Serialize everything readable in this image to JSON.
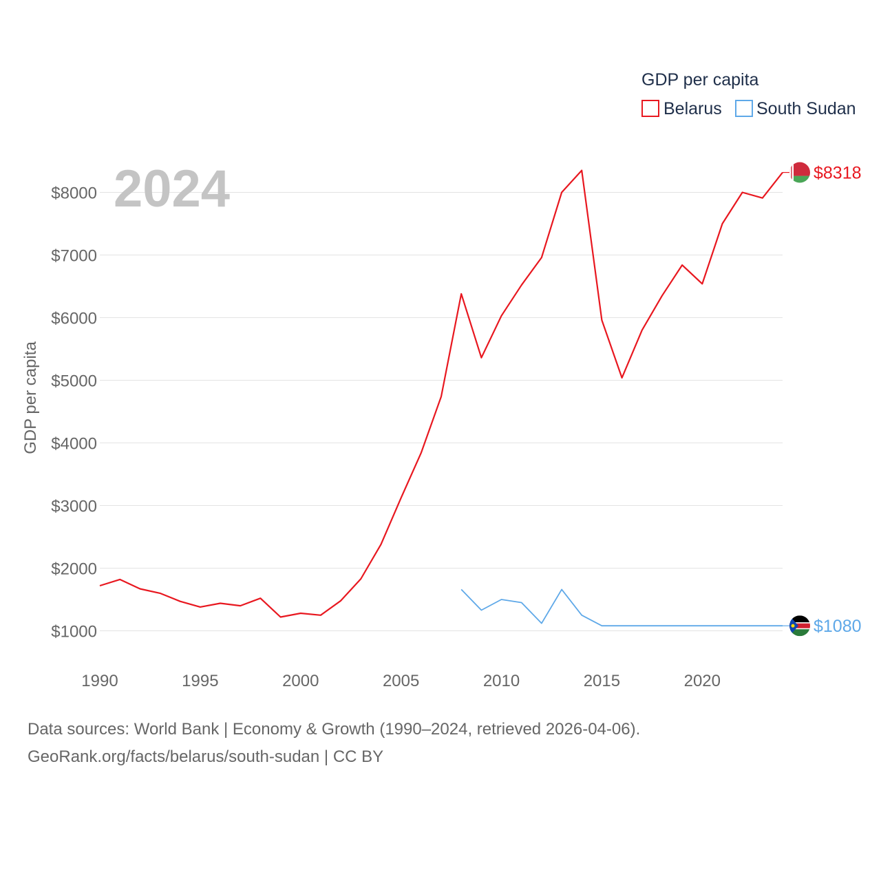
{
  "chart_data": {
    "type": "line",
    "title": "GDP per capita",
    "year_label": "2024",
    "ylabel": "GDP per capita",
    "xlim": [
      1990,
      2024
    ],
    "ylim": [
      500,
      8700
    ],
    "x_ticks": [
      1990,
      1995,
      2000,
      2005,
      2010,
      2015,
      2020
    ],
    "y_ticks": [
      {
        "value": 1000,
        "label": "$1000"
      },
      {
        "value": 2000,
        "label": "$2000"
      },
      {
        "value": 3000,
        "label": "$3000"
      },
      {
        "value": 4000,
        "label": "$4000"
      },
      {
        "value": 5000,
        "label": "$5000"
      },
      {
        "value": 6000,
        "label": "$6000"
      },
      {
        "value": 7000,
        "label": "$7000"
      },
      {
        "value": 8000,
        "label": "$8000"
      }
    ],
    "grid": true,
    "legend_position": "top-right",
    "series": [
      {
        "name": "Belarus",
        "color": "#e8171f",
        "end_label": "$8318",
        "x": [
          1990,
          1991,
          1992,
          1993,
          1994,
          1995,
          1996,
          1997,
          1998,
          1999,
          2000,
          2001,
          2002,
          2003,
          2004,
          2005,
          2006,
          2007,
          2008,
          2009,
          2010,
          2011,
          2012,
          2013,
          2014,
          2015,
          2016,
          2017,
          2018,
          2019,
          2020,
          2021,
          2022,
          2023,
          2024
        ],
        "values": [
          1720,
          1820,
          1670,
          1600,
          1470,
          1380,
          1440,
          1400,
          1520,
          1220,
          1280,
          1250,
          1480,
          1830,
          2380,
          3120,
          3840,
          4740,
          6380,
          5360,
          6030,
          6520,
          6960,
          8000,
          8350,
          5960,
          5040,
          5800,
          6350,
          6840,
          6540,
          7500,
          8000,
          7910,
          8318
        ]
      },
      {
        "name": "South Sudan",
        "color": "#5ea8e8",
        "end_label": "$1080",
        "x": [
          2008,
          2009,
          2010,
          2011,
          2012,
          2013,
          2014,
          2015,
          2016,
          2017,
          2018,
          2019,
          2020,
          2021,
          2022,
          2023,
          2024
        ],
        "values": [
          1660,
          1330,
          1500,
          1450,
          1120,
          1660,
          1250,
          1080,
          1080,
          1080,
          1080,
          1080,
          1080,
          1080,
          1080,
          1080,
          1080
        ]
      }
    ]
  },
  "flags": {
    "belarus": {
      "top": "#cf2b3d",
      "bottom": "#4aa657",
      "ornament": "#ffffff"
    },
    "south_sudan": {
      "top": "#000000",
      "middle": "#d12030",
      "bottom": "#2a7a3a",
      "fimbriation": "#ffffff",
      "triangle": "#0f47af",
      "star": "#fcdd09"
    }
  },
  "source": {
    "line1": "Data sources: World Bank | Economy & Growth (1990–2024, retrieved 2026-04-06).",
    "line2": "GeoRank.org/facts/belarus/south-sudan | CC BY"
  }
}
